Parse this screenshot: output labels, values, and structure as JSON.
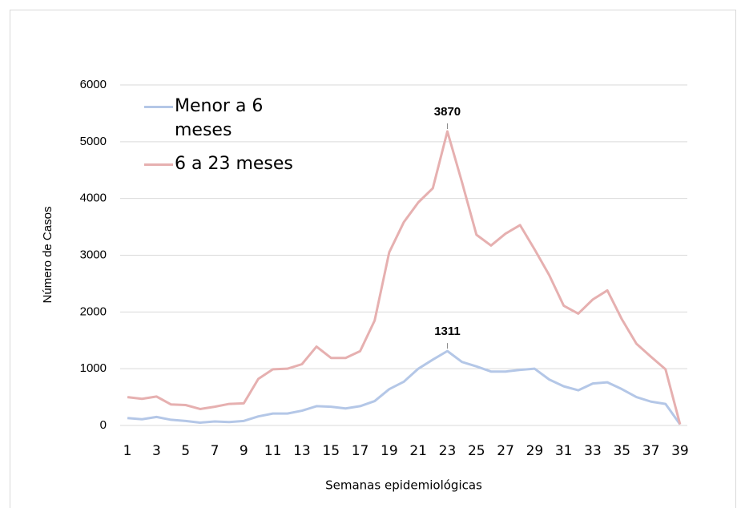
{
  "chart_data": {
    "type": "line",
    "stacked": true,
    "y_label": "Número de Casos",
    "x_label": "Semanas epidemiológicas",
    "x": [
      1,
      2,
      3,
      4,
      5,
      6,
      7,
      8,
      9,
      10,
      11,
      12,
      13,
      14,
      15,
      16,
      17,
      18,
      19,
      20,
      21,
      22,
      23,
      24,
      25,
      26,
      27,
      28,
      29,
      30,
      31,
      32,
      33,
      34,
      35,
      36,
      37,
      38,
      39
    ],
    "xlim": [
      0.5,
      39.5
    ],
    "xticks": [
      1,
      3,
      5,
      7,
      9,
      11,
      13,
      15,
      17,
      19,
      21,
      23,
      25,
      27,
      29,
      31,
      33,
      35,
      37,
      39
    ],
    "ylim": [
      0,
      6000
    ],
    "yticks": [
      0,
      1000,
      2000,
      3000,
      4000,
      5000,
      6000
    ],
    "grid": true,
    "series": [
      {
        "name": "Menor a 6 meses",
        "color": "#b4c7e7",
        "show_max_label": true,
        "values": [
          130,
          110,
          150,
          100,
          80,
          50,
          70,
          60,
          80,
          160,
          210,
          210,
          260,
          340,
          330,
          300,
          340,
          430,
          640,
          770,
          1000,
          1160,
          1311,
          1120,
          1040,
          950,
          950,
          980,
          1000,
          810,
          690,
          620,
          740,
          760,
          640,
          500,
          420,
          380,
          20
        ]
      },
      {
        "name": "6 a 23 meses",
        "color": "#e6b0b0",
        "show_max_label": true,
        "values": [
          370,
          360,
          360,
          270,
          280,
          240,
          260,
          320,
          310,
          660,
          780,
          790,
          820,
          1050,
          860,
          890,
          970,
          1420,
          2410,
          2810,
          2930,
          3020,
          3870,
          3170,
          2320,
          2220,
          2430,
          2550,
          2100,
          1840,
          1420,
          1350,
          1480,
          1620,
          1230,
          940,
          790,
          610,
          0
        ]
      }
    ]
  }
}
